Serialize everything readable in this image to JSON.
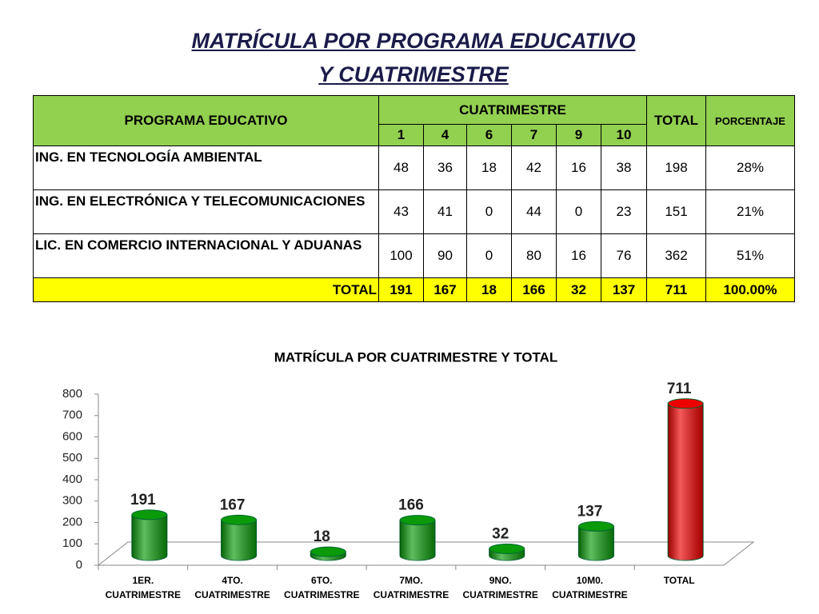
{
  "title": [
    "MATRÍCULA POR PROGRAMA EDUCATIVO",
    "Y CUATRIMESTRE"
  ],
  "table": {
    "header": {
      "program": "PROGRAMA EDUCATIVO",
      "group": "CUATRIMESTRE",
      "total": "TOTAL",
      "percent": "PORCENTAJE",
      "columns": [
        "1",
        "4",
        "6",
        "7",
        "9",
        "10"
      ]
    },
    "rows": [
      {
        "program": "ING. EN TECNOLOGÍA AMBIENTAL",
        "values": [
          48,
          36,
          18,
          42,
          16,
          38
        ],
        "total": 198,
        "percent": "28%"
      },
      {
        "program": "ING. EN ELECTRÓNICA Y TELECOMUNICACIONES",
        "values": [
          43,
          41,
          0,
          44,
          0,
          23
        ],
        "total": 151,
        "percent": "21%"
      },
      {
        "program": "LIC. EN COMERCIO INTERNACIONAL Y ADUANAS",
        "values": [
          100,
          90,
          0,
          80,
          16,
          76
        ],
        "total": 362,
        "percent": "51%"
      }
    ],
    "totals": {
      "program": "TOTAL",
      "values": [
        191,
        167,
        18,
        166,
        32,
        137
      ],
      "total": 711,
      "percent": "100.00%"
    }
  },
  "chart_data": {
    "type": "bar",
    "title": "MATRÍCULA  POR CUATRIMESTRE Y TOTAL",
    "categories": [
      "1ER. CUATRIMESTRE",
      "4TO. CUATRIMESTRE",
      "6TO. CUATRIMESTRE",
      "7MO. CUATRIMESTRE",
      "9NO. CUATRIMESTRE",
      "10M0. CUATRIMESTRE",
      "TOTAL"
    ],
    "values": [
      191,
      167,
      18,
      166,
      32,
      137,
      711
    ],
    "colors": [
      "#0a9a0a",
      "#0a9a0a",
      "#0a9a0a",
      "#0a9a0a",
      "#0a9a0a",
      "#0a9a0a",
      "#ee0000"
    ],
    "ylim": [
      0,
      800
    ],
    "yticks": [
      0,
      100,
      200,
      300,
      400,
      500,
      600,
      700,
      800
    ]
  }
}
